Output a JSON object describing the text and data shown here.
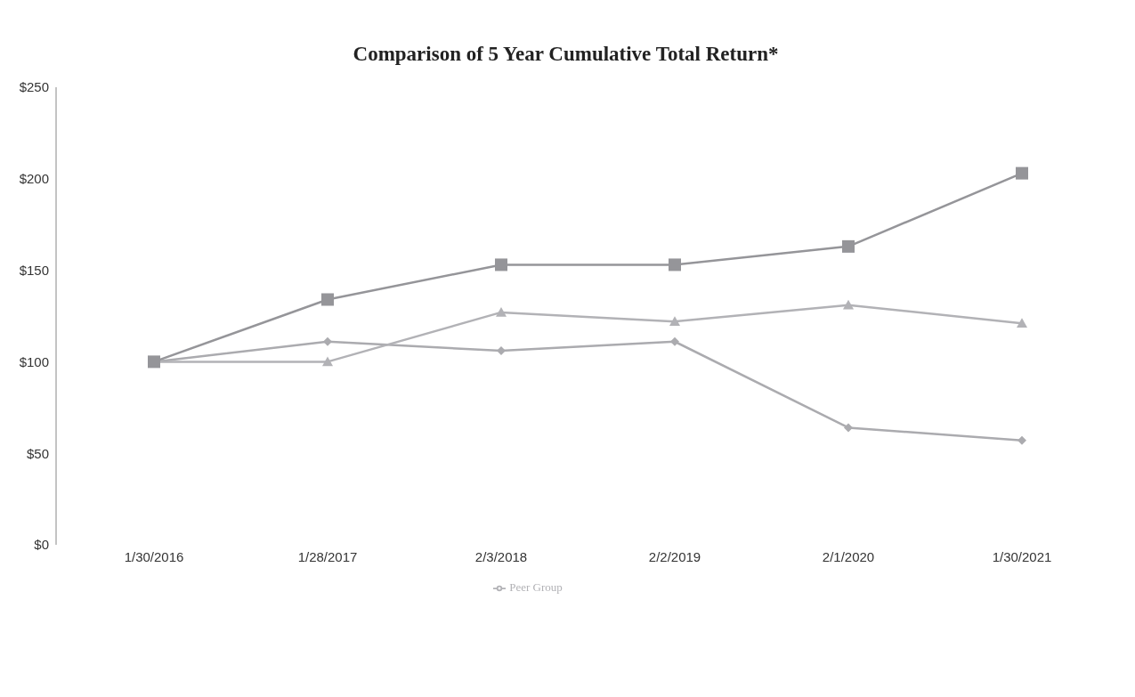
{
  "chart_data": {
    "type": "line",
    "title": "Comparison of 5 Year Cumulative Total Return*",
    "categories": [
      "1/30/2016",
      "1/28/2017",
      "2/3/2018",
      "2/2/2019",
      "2/1/2020",
      "1/30/2021"
    ],
    "series": [
      {
        "color": "#ababaf",
        "marker": "diamond",
        "values": [
          100,
          111,
          106,
          111,
          64,
          57
        ]
      },
      {
        "name": "Peer Group",
        "color": "#b2b2b6",
        "marker": "triangle",
        "values": [
          100,
          100,
          127,
          122,
          131,
          121
        ]
      },
      {
        "color": "#959599",
        "marker": "square",
        "values": [
          100,
          134,
          153,
          153,
          163,
          203
        ]
      }
    ],
    "ylim": [
      0,
      250
    ],
    "yticks": [
      {
        "value": 0,
        "label": "$0"
      },
      {
        "value": 50,
        "label": "$50"
      },
      {
        "value": 100,
        "label": "$100"
      },
      {
        "value": 150,
        "label": "$150"
      },
      {
        "value": 200,
        "label": "$200"
      },
      {
        "value": 250,
        "label": "$250"
      }
    ],
    "grid": false,
    "legend": "bottom"
  }
}
